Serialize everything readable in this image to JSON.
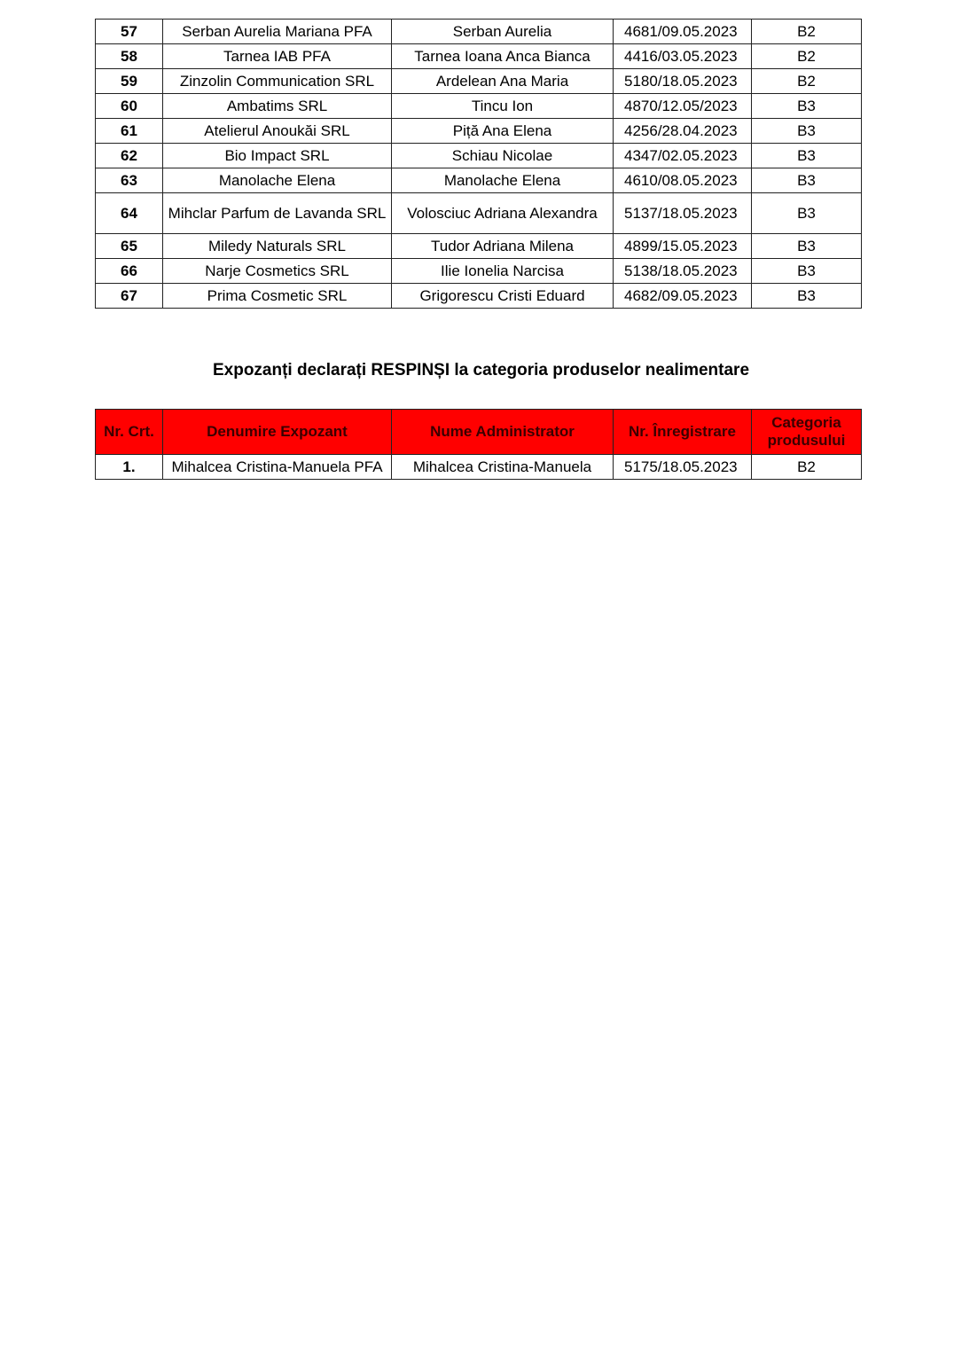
{
  "accepted_table": {
    "rows": [
      {
        "nr": "57",
        "exhibitor": "Serban Aurelia Mariana PFA",
        "administrator": "Serban Aurelia",
        "registration": "4681/09.05.2023",
        "category": "B2"
      },
      {
        "nr": "58",
        "exhibitor": "Tarnea IAB PFA",
        "administrator": "Tarnea Ioana Anca Bianca",
        "registration": "4416/03.05.2023",
        "category": "B2"
      },
      {
        "nr": "59",
        "exhibitor": "Zinzolin Communication SRL",
        "administrator": "Ardelean Ana Maria",
        "registration": "5180/18.05.2023",
        "category": "B2"
      },
      {
        "nr": "60",
        "exhibitor": "Ambatims SRL",
        "administrator": "Tincu Ion",
        "registration": "4870/12.05/2023",
        "category": "B3"
      },
      {
        "nr": "61",
        "exhibitor": "Atelierul Anoukăi SRL",
        "administrator": "Piță Ana Elena",
        "registration": "4256/28.04.2023",
        "category": "B3"
      },
      {
        "nr": "62",
        "exhibitor": "Bio Impact SRL",
        "administrator": "Schiau Nicolae",
        "registration": "4347/02.05.2023",
        "category": "B3"
      },
      {
        "nr": "63",
        "exhibitor": "Manolache Elena",
        "administrator": "Manolache Elena",
        "registration": "4610/08.05.2023",
        "category": "B3"
      },
      {
        "nr": "64",
        "exhibitor": "Mihclar Parfum de Lavanda SRL",
        "administrator": "Volosciuc Adriana Alexandra",
        "registration": "5137/18.05.2023",
        "category": "B3"
      },
      {
        "nr": "65",
        "exhibitor": "Miledy Naturals SRL",
        "administrator": "Tudor Adriana Milena",
        "registration": "4899/15.05.2023",
        "category": "B3"
      },
      {
        "nr": "66",
        "exhibitor": "Narje Cosmetics SRL",
        "administrator": "Ilie Ionelia Narcisa",
        "registration": "5138/18.05.2023",
        "category": "B3"
      },
      {
        "nr": "67",
        "exhibitor": "Prima Cosmetic SRL",
        "administrator": "Grigorescu Cristi Eduard",
        "registration": "4682/09.05.2023",
        "category": "B3"
      }
    ]
  },
  "rejected_section": {
    "title": "Expozanți declarați RESPINȘI la categoria produselor nealimentare",
    "header_color": "#ff0000",
    "headers": [
      "Nr. Crt.",
      "Denumire Expozant",
      "Nume Administrator",
      "Nr. Înregistrare",
      "Categoria produsului"
    ],
    "rows": [
      {
        "nr": "1.",
        "exhibitor": "Mihalcea Cristina-Manuela PFA",
        "administrator": "Mihalcea Cristina-Manuela",
        "registration": "5175/18.05.2023",
        "category": "B2"
      }
    ]
  }
}
